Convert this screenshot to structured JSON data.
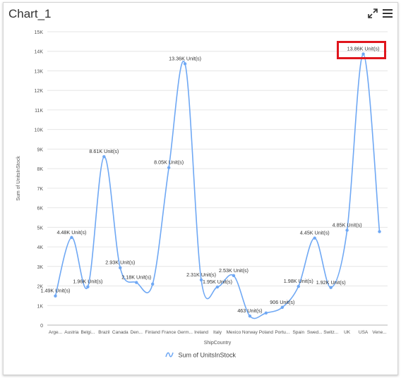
{
  "header": {
    "title": "Chart_1",
    "expand_icon": "expand-icon",
    "menu_icon": "hamburger-menu-icon"
  },
  "colors": {
    "series": "#6fa8f4",
    "highlight": "#e0161d",
    "grid": "#e6e6e6",
    "axis_text": "#555555"
  },
  "chart_data": {
    "type": "line",
    "smooth": true,
    "xlabel": "ShipCountry",
    "ylabel": "Sum of UnitsInStock",
    "ylim": [
      0,
      15000
    ],
    "yticks": [
      {
        "value": 0,
        "label": "0"
      },
      {
        "value": 1000,
        "label": "1K"
      },
      {
        "value": 2000,
        "label": "2K"
      },
      {
        "value": 3000,
        "label": "3K"
      },
      {
        "value": 4000,
        "label": "4K"
      },
      {
        "value": 5000,
        "label": "5K"
      },
      {
        "value": 6000,
        "label": "6K"
      },
      {
        "value": 7000,
        "label": "7K"
      },
      {
        "value": 8000,
        "label": "8K"
      },
      {
        "value": 9000,
        "label": "9K"
      },
      {
        "value": 10000,
        "label": "10K"
      },
      {
        "value": 11000,
        "label": "11K"
      },
      {
        "value": 12000,
        "label": "12K"
      },
      {
        "value": 13000,
        "label": "13K"
      },
      {
        "value": 14000,
        "label": "14K"
      },
      {
        "value": 15000,
        "label": "15K"
      }
    ],
    "grid": true,
    "legend_position": "bottom",
    "categories": [
      "Arge...",
      "Austria",
      "Belgi...",
      "Brazil",
      "Canada",
      "Den...",
      "Finland",
      "France",
      "Germ...",
      "Ireland",
      "Italy",
      "Mexico",
      "Norway",
      "Poland",
      "Portu...",
      "Spain",
      "Swed...",
      "Switz...",
      "UK",
      "USA",
      "Vene..."
    ],
    "series": [
      {
        "name": "Sum of UnitsInStock",
        "values": [
          1490,
          4480,
          1960,
          8610,
          2930,
          2180,
          2100,
          8050,
          13360,
          2310,
          1950,
          2530,
          463,
          620,
          906,
          1980,
          4450,
          1920,
          4850,
          13860,
          4780
        ],
        "labels": [
          "1.49K Unit(s)",
          "4.48K Unit(s)",
          "1.96K Unit(s)",
          "8.61K Unit(s)",
          "2.93K Unit(s)",
          "2.18K Unit(s)",
          "",
          "8.05K Unit(s)",
          "13.36K Unit(s)",
          "2.31K Unit(s)",
          "1.95K Unit(s)",
          "2.53K Unit(s)",
          "463 Unit(s)",
          "",
          "906 Unit(s)",
          "1.98K Unit(s)",
          "4.45K Unit(s)",
          "1.92K Unit(s)",
          "4.85K Unit(s)",
          "13.86K Unit(s)",
          ""
        ]
      }
    ]
  }
}
